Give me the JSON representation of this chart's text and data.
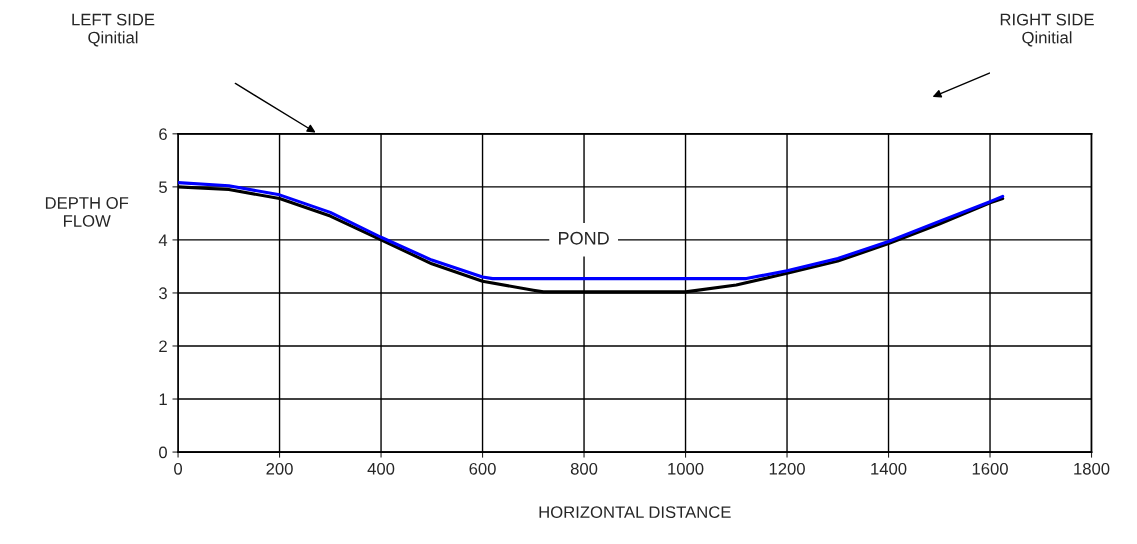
{
  "chart_data": {
    "type": "line",
    "xlabel": "HORIZONTAL DISTANCE",
    "ylabel": "DEPTH OF\nFLOW",
    "xlim": [
      0,
      1800
    ],
    "xticks": [
      0,
      200,
      400,
      600,
      800,
      1000,
      1200,
      1400,
      1600,
      1800
    ],
    "ylim": [
      0,
      6
    ],
    "yticks": [
      0,
      1,
      2,
      3,
      4,
      5,
      6
    ],
    "grid": true,
    "legend": false,
    "series": [
      {
        "color": "#000000",
        "x": [
          0,
          100,
          200,
          300,
          400,
          500,
          600,
          700,
          720,
          1000,
          1100,
          1200,
          1300,
          1400,
          1500,
          1600,
          1625
        ],
        "values": [
          5.0,
          4.95,
          4.78,
          4.45,
          4.0,
          3.55,
          3.22,
          3.05,
          3.02,
          3.02,
          3.15,
          3.37,
          3.6,
          3.93,
          4.3,
          4.7,
          4.78
        ]
      },
      {
        "color": "#0000ff",
        "x": [
          0,
          100,
          200,
          300,
          400,
          500,
          600,
          620,
          1120,
          1200,
          1300,
          1400,
          1500,
          1600,
          1625
        ],
        "values": [
          5.08,
          5.02,
          4.85,
          4.52,
          4.05,
          3.62,
          3.3,
          3.27,
          3.27,
          3.42,
          3.65,
          3.97,
          4.35,
          4.72,
          4.82
        ]
      }
    ],
    "annotations": [
      "LEFT SIDE\nQinitial",
      "RIGHT SIDE\nQinitial",
      "POND"
    ]
  }
}
